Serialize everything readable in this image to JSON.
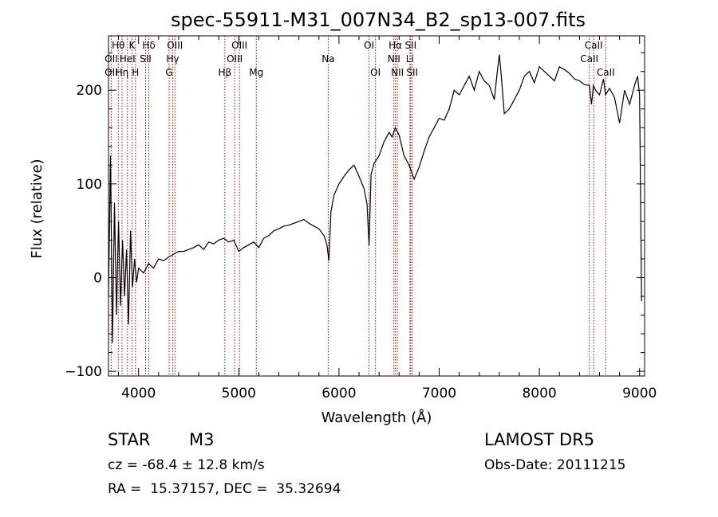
{
  "chart_data": {
    "type": "line",
    "title": "spec-55911-M31_007N34_B2_sp13-007.fits",
    "xlabel": "Wavelength (Å)",
    "ylabel": "Flux (relative)",
    "xlim": [
      3700,
      9050
    ],
    "ylim": [
      -105,
      258
    ],
    "x_ticks": [
      4000,
      5000,
      6000,
      7000,
      8000,
      9000
    ],
    "y_ticks": [
      -100,
      0,
      100,
      200
    ],
    "grid": false,
    "series": [
      {
        "x": [
          3700,
          3720,
          3740,
          3760,
          3780,
          3800,
          3820,
          3840,
          3860,
          3880,
          3900,
          3920,
          3940,
          3960,
          3980,
          4000,
          4050,
          4100,
          4150,
          4200,
          4250,
          4300,
          4350,
          4400,
          4450,
          4500,
          4550,
          4600,
          4650,
          4700,
          4750,
          4800,
          4850,
          4900,
          4950,
          5000,
          5050,
          5100,
          5150,
          5200,
          5250,
          5300,
          5350,
          5400,
          5450,
          5500,
          5550,
          5600,
          5650,
          5700,
          5750,
          5800,
          5850,
          5880,
          5900,
          5920,
          5950,
          6000,
          6050,
          6100,
          6150,
          6200,
          6250,
          6280,
          6300,
          6320,
          6350,
          6400,
          6450,
          6500,
          6530,
          6563,
          6600,
          6650,
          6700,
          6750,
          6800,
          6850,
          6900,
          6950,
          7000,
          7050,
          7100,
          7150,
          7200,
          7250,
          7300,
          7350,
          7400,
          7450,
          7500,
          7550,
          7580,
          7600,
          7620,
          7650,
          7700,
          7750,
          7800,
          7850,
          7900,
          7950,
          8000,
          8050,
          8100,
          8150,
          8200,
          8250,
          8300,
          8350,
          8400,
          8450,
          8500,
          8520,
          8540,
          8560,
          8600,
          8640,
          8660,
          8700,
          8750,
          8800,
          8850,
          8900,
          8950,
          8980,
          9000,
          9020
        ],
        "y": [
          -20,
          130,
          -70,
          80,
          -40,
          60,
          -30,
          40,
          -20,
          30,
          -50,
          50,
          -10,
          20,
          -5,
          10,
          5,
          15,
          10,
          20,
          18,
          22,
          25,
          28,
          28,
          30,
          32,
          35,
          30,
          38,
          36,
          40,
          42,
          38,
          40,
          28,
          32,
          35,
          38,
          32,
          42,
          45,
          50,
          52,
          55,
          56,
          58,
          60,
          62,
          58,
          55,
          52,
          45,
          35,
          18,
          70,
          88,
          100,
          108,
          115,
          120,
          108,
          95,
          78,
          34,
          110,
          122,
          130,
          145,
          155,
          150,
          160,
          152,
          130,
          120,
          105,
          118,
          135,
          150,
          160,
          170,
          168,
          180,
          200,
          195,
          205,
          215,
          200,
          220,
          210,
          205,
          190,
          220,
          238,
          215,
          175,
          180,
          190,
          200,
          215,
          220,
          208,
          225,
          220,
          215,
          210,
          225,
          222,
          218,
          212,
          210,
          206,
          205,
          185,
          205,
          200,
          195,
          212,
          195,
          202,
          192,
          165,
          200,
          185,
          205,
          215,
          195,
          -25
        ]
      }
    ],
    "line_markers": [
      {
        "name": "Hθ",
        "wavelength": 3798,
        "row": 1
      },
      {
        "name": "OII",
        "wavelength": 3727,
        "row": 2
      },
      {
        "name": "OII",
        "wavelength": 3727,
        "row": 3
      },
      {
        "name": "Hη",
        "wavelength": 3835,
        "row": 3
      },
      {
        "name": "K",
        "wavelength": 3934,
        "row": 1
      },
      {
        "name": "HeI",
        "wavelength": 3889,
        "row": 2
      },
      {
        "name": "H",
        "wavelength": 3969,
        "row": 3
      },
      {
        "name": "Hδ",
        "wavelength": 4102,
        "row": 1
      },
      {
        "name": "SII",
        "wavelength": 4070,
        "row": 2
      },
      {
        "name": "OIII",
        "wavelength": 4363,
        "row": 1
      },
      {
        "name": "Hγ",
        "wavelength": 4340,
        "row": 2
      },
      {
        "name": "G",
        "wavelength": 4305,
        "row": 3
      },
      {
        "name": "OIII",
        "wavelength": 5007,
        "row": 1
      },
      {
        "name": "OIII",
        "wavelength": 4959,
        "row": 2
      },
      {
        "name": "Hβ",
        "wavelength": 4861,
        "row": 3
      },
      {
        "name": "Mg",
        "wavelength": 5175,
        "row": 3
      },
      {
        "name": "Na",
        "wavelength": 5893,
        "row": 2
      },
      {
        "name": "OI",
        "wavelength": 6300,
        "row": 1
      },
      {
        "name": "OI",
        "wavelength": 6364,
        "row": 3
      },
      {
        "name": "Hα",
        "wavelength": 6563,
        "row": 1
      },
      {
        "name": "NII",
        "wavelength": 6548,
        "row": 2
      },
      {
        "name": "NII",
        "wavelength": 6583,
        "row": 3
      },
      {
        "name": "SII",
        "wavelength": 6716,
        "row": 1
      },
      {
        "name": "Li",
        "wavelength": 6708,
        "row": 2
      },
      {
        "name": "SII",
        "wavelength": 6731,
        "row": 3
      },
      {
        "name": "CaII",
        "wavelength": 8542,
        "row": 1
      },
      {
        "name": "CaII",
        "wavelength": 8498,
        "row": 2
      },
      {
        "name": "CaII",
        "wavelength": 8662,
        "row": 3
      }
    ],
    "marker_lines": [
      3727,
      3798,
      3835,
      3889,
      3934,
      3969,
      4070,
      4102,
      4305,
      4340,
      4363,
      4861,
      4959,
      5007,
      5175,
      5893,
      6300,
      6364,
      6548,
      6563,
      6583,
      6708,
      6716,
      6731,
      8498,
      8542,
      8662
    ]
  },
  "info": {
    "object_class": "STAR",
    "subclass": "M3",
    "survey": "LAMOST DR5",
    "redshift": "cz = -68.4 ± 12.8 km/s",
    "obs_date": "Obs-Date: 20111215",
    "coords": "RA =  15.37157, DEC =  35.32694"
  },
  "colors": {
    "spectrum": "#000000",
    "marker_line": "#cc0000",
    "axis": "#000000"
  }
}
